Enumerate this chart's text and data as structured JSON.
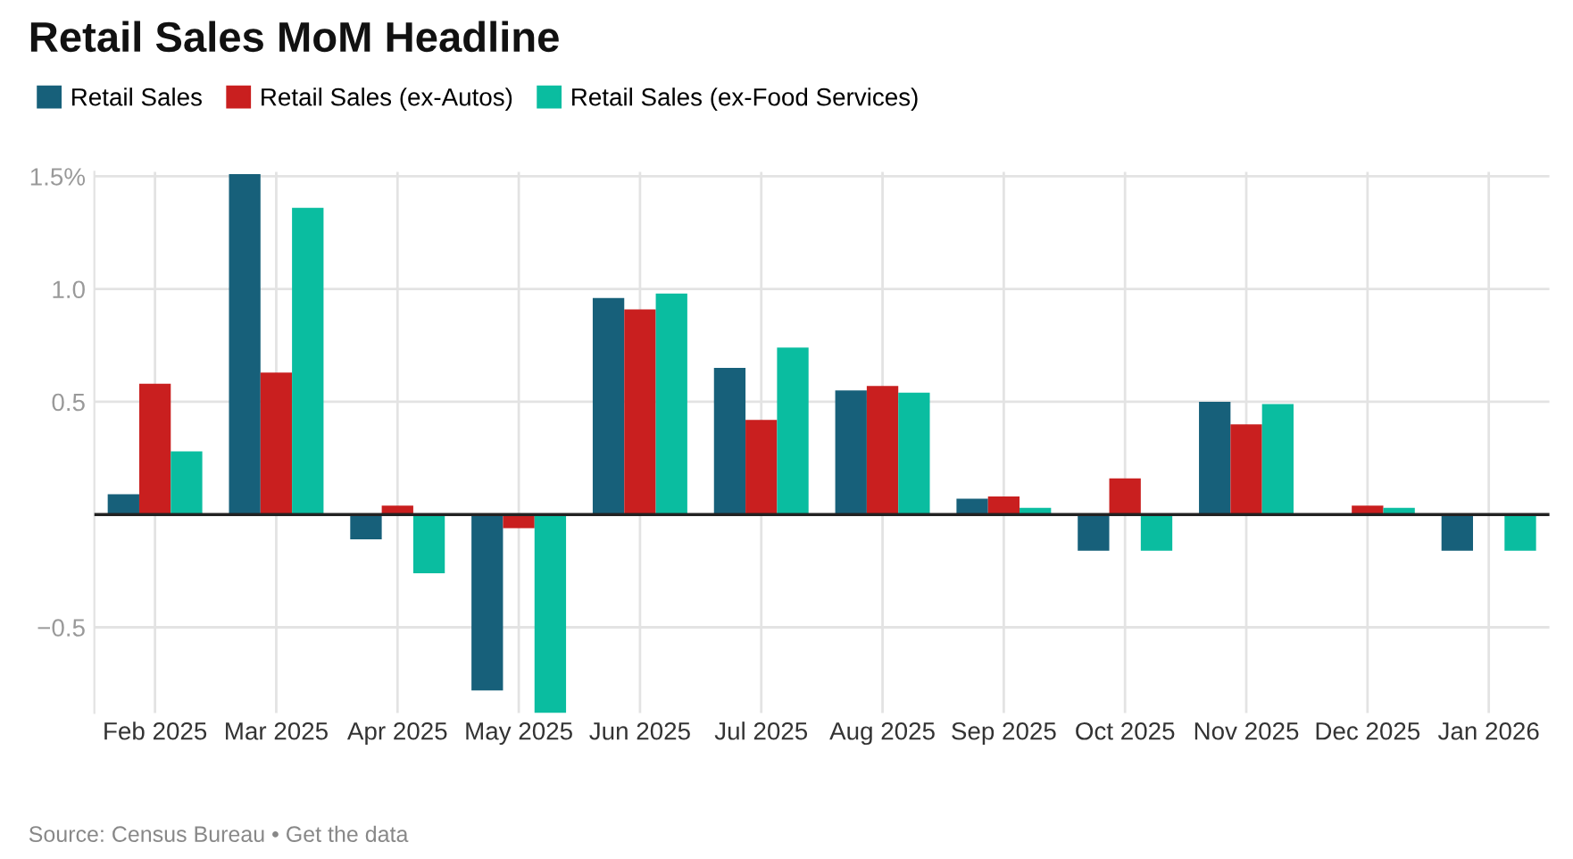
{
  "chart_data": {
    "type": "bar",
    "title": "Retail Sales MoM Headline",
    "categories": [
      "Feb 2025",
      "Mar 2025",
      "Apr 2025",
      "May 2025",
      "Jun 2025",
      "Jul 2025",
      "Aug 2025",
      "Sep 2025",
      "Oct 2025",
      "Nov 2025",
      "Dec 2025",
      "Jan 2026"
    ],
    "series": [
      {
        "name": "Retail Sales",
        "color": "#17607a",
        "values": [
          0.09,
          1.51,
          -0.11,
          -0.78,
          0.96,
          0.65,
          0.55,
          0.07,
          -0.16,
          0.5,
          0.0,
          -0.16
        ]
      },
      {
        "name": "Retail Sales (ex-Autos)",
        "color": "#c91f1f",
        "values": [
          0.58,
          0.63,
          0.04,
          -0.06,
          0.91,
          0.42,
          0.57,
          0.08,
          0.16,
          0.4,
          0.04,
          0.0
        ]
      },
      {
        "name": "Retail Sales (ex-Food Services)",
        "color": "#0abda0",
        "values": [
          0.28,
          1.36,
          -0.26,
          -0.88,
          0.98,
          0.74,
          0.54,
          0.03,
          -0.16,
          0.49,
          0.03,
          -0.16
        ]
      }
    ],
    "ylim": [
      -0.88,
      1.52
    ],
    "yticks": [
      {
        "value": -0.5,
        "label": "−0.5"
      },
      {
        "value": 0,
        "label": null
      },
      {
        "value": 0.5,
        "label": "0.5"
      },
      {
        "value": 1.0,
        "label": "1.0"
      },
      {
        "value": 1.5,
        "label": "1.5%"
      }
    ],
    "grid": true,
    "legend": "top left",
    "annotations": [
      "Source: Census Bureau • Get the data"
    ]
  }
}
